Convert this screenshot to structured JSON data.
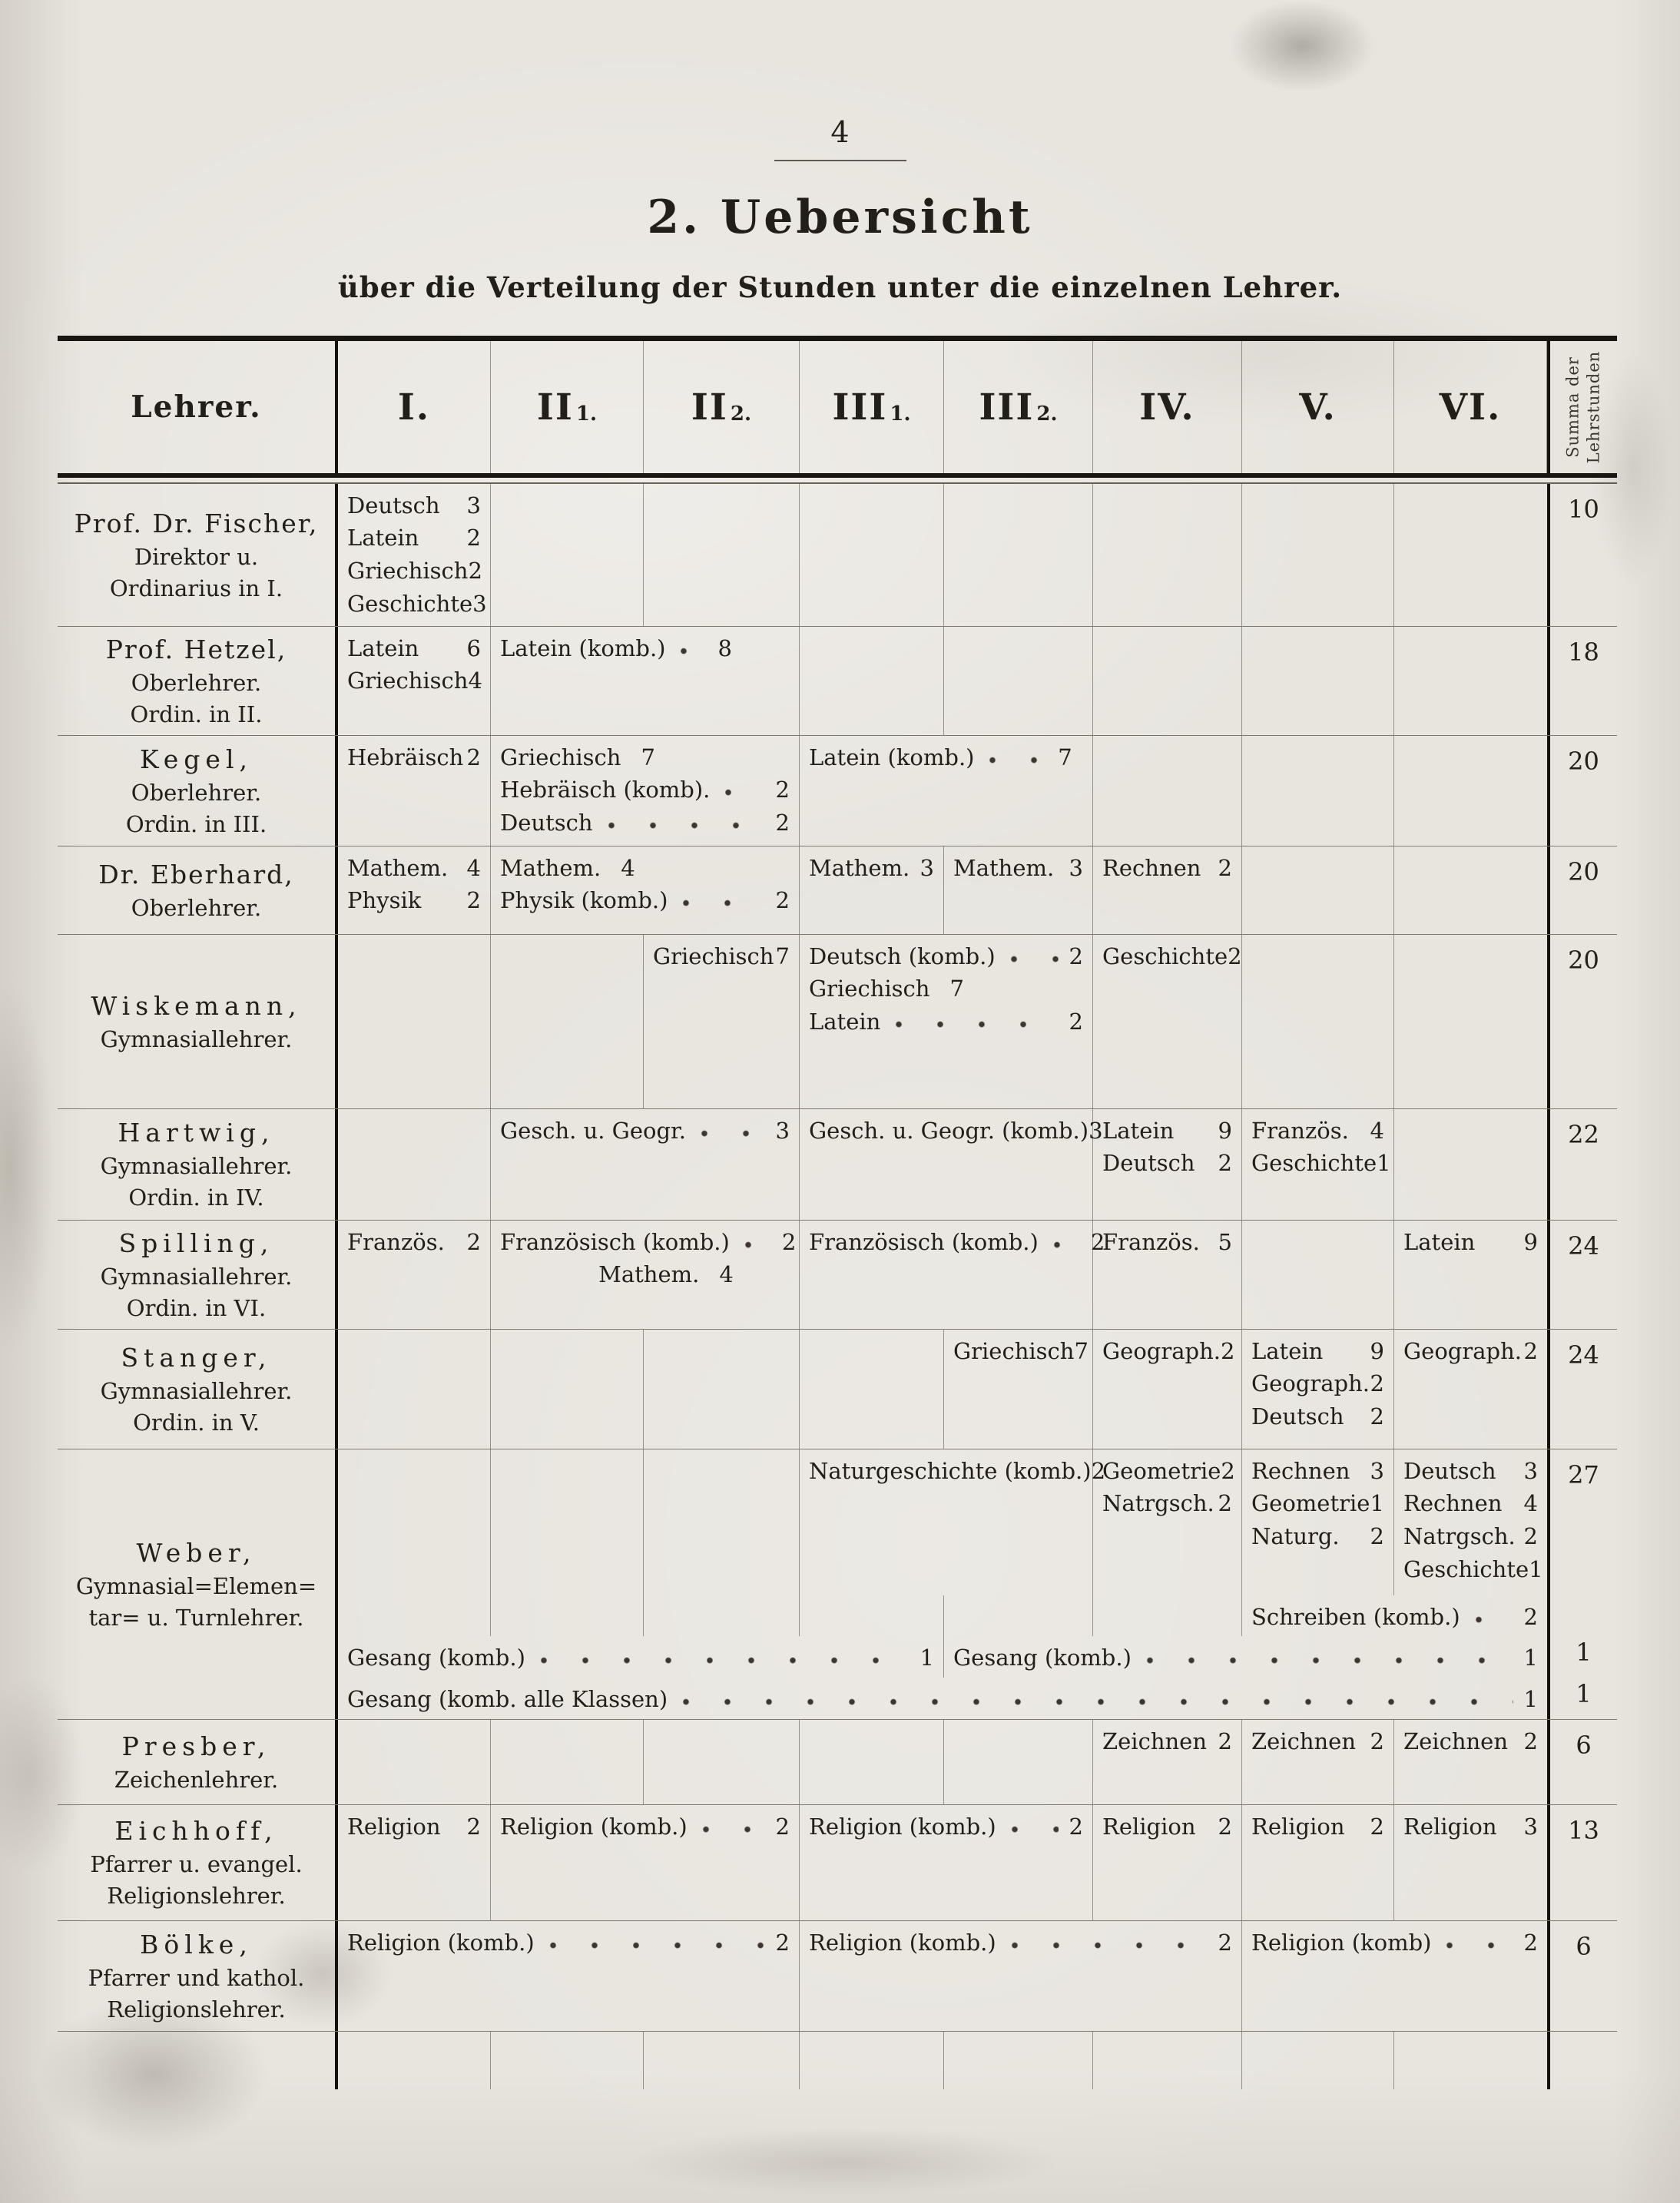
{
  "page_number": "4",
  "title": "2. Uebersicht",
  "subtitle": "über die Verteilung der Stunden unter die einzelnen Lehrer.",
  "colors": {
    "paper": "#e8e5df",
    "ink": "#221e18",
    "rule": "#15110c"
  },
  "table": {
    "lehrer_header": "Lehrer.",
    "class_headers": [
      {
        "main": "I.",
        "sub": ""
      },
      {
        "main": "II",
        "sub": "1."
      },
      {
        "main": "II",
        "sub": "2."
      },
      {
        "main": "III",
        "sub": "1."
      },
      {
        "main": "III",
        "sub": "2."
      },
      {
        "main": "IV.",
        "sub": ""
      },
      {
        "main": "V.",
        "sub": ""
      },
      {
        "main": "VI.",
        "sub": ""
      }
    ],
    "summa_header_line1": "Summa der",
    "summa_header_line2": "Lehrstunden",
    "rows": [
      {
        "name_lines": [
          "Prof. Dr. Fischer,",
          "Direktor u.",
          "Ordinarius in I."
        ],
        "spaced": false,
        "sub_rows": [
          {
            "summa": "10",
            "cells": [
              {
                "col": 1,
                "lines": [
                  {
                    "s": "Deutsch",
                    "v": "3"
                  },
                  {
                    "s": "Latein",
                    "v": "2"
                  },
                  {
                    "s": "Griechisch",
                    "v": "2"
                  },
                  {
                    "s": "Geschichte",
                    "v": "3"
                  }
                ]
              }
            ]
          }
        ]
      },
      {
        "name_lines": [
          "Prof. Hetzel,",
          "Oberlehrer.",
          "Ordin. in II."
        ],
        "spaced": false,
        "sub_rows": [
          {
            "summa": "18",
            "cells": [
              {
                "col": 1,
                "lines": [
                  {
                    "s": "Latein",
                    "v": "6"
                  },
                  {
                    "s": "Griechisch",
                    "v": "4"
                  }
                ]
              },
              {
                "col": 2,
                "span": 2,
                "lines": [
                  {
                    "s": "Latein (komb.)",
                    "v": "8",
                    "dots": true,
                    "w": 66
                  }
                ]
              }
            ]
          }
        ]
      },
      {
        "name_lines": [
          "Kegel,",
          "Oberlehrer.",
          "Ordin. in III."
        ],
        "spaced": true,
        "sub_rows": [
          {
            "summa": "20",
            "cells": [
              {
                "col": 1,
                "lines": [
                  {
                    "s": "Hebräisch",
                    "v": "2"
                  }
                ]
              },
              {
                "col": 2,
                "span": 2,
                "lines": [
                  {
                    "s": "Griechisch",
                    "v": "7",
                    "inline": true
                  },
                  {
                    "s": "Hebräisch (komb).",
                    "v": "2",
                    "dots": true
                  },
                  {
                    "s": "Deutsch",
                    "v": "2",
                    "dots": true
                  }
                ]
              },
              {
                "col": 4,
                "span": 2,
                "lines": [
                  {
                    "s": "Latein (komb.)",
                    "v": "7",
                    "dots": true,
                    "w": 96
                  }
                ]
              }
            ]
          }
        ]
      },
      {
        "name_lines": [
          "Dr. Eberhard,",
          "Oberlehrer."
        ],
        "spaced": false,
        "sub_rows": [
          {
            "summa": "20",
            "cells": [
              {
                "col": 1,
                "lines": [
                  {
                    "s": "Mathem.",
                    "v": "4"
                  },
                  {
                    "s": "Physik",
                    "v": "2"
                  }
                ]
              },
              {
                "col": 2,
                "span": 2,
                "lines": [
                  {
                    "s": "Mathem.",
                    "v": "4",
                    "inline": true
                  },
                  {
                    "s": "Physik (komb.)",
                    "v": "2",
                    "dots": true
                  }
                ]
              },
              {
                "col": 4,
                "lines": [
                  {
                    "s": "Mathem.",
                    "v": "3"
                  }
                ]
              },
              {
                "col": 5,
                "lines": [
                  {
                    "s": "Mathem.",
                    "v": "3"
                  }
                ]
              },
              {
                "col": 6,
                "lines": [
                  {
                    "s": "Rechnen",
                    "v": "2"
                  }
                ]
              }
            ]
          }
        ]
      },
      {
        "name_lines": [
          "Wiskemann,",
          "Gymnasiallehrer."
        ],
        "spaced": true,
        "sub_rows": [
          {
            "summa": "20",
            "cells": [
              {
                "col": 3,
                "lines": [
                  {
                    "s": "Griechisch",
                    "v": "7"
                  }
                ]
              },
              {
                "col": 4,
                "span": 2,
                "lines": [
                  {
                    "s": "Deutsch (komb.)",
                    "v": "2",
                    "dots": true
                  },
                  {
                    "s": "Griechisch",
                    "v": "7",
                    "inline": true
                  },
                  {
                    "s": "Latein",
                    "v": "2",
                    "dots": true
                  }
                ]
              },
              {
                "col": 6,
                "lines": [
                  {
                    "s": "Geschichte",
                    "v": "2"
                  }
                ]
              }
            ]
          }
        ]
      },
      {
        "name_lines": [
          "Hartwig,",
          "Gymnasiallehrer.",
          "Ordin. in IV."
        ],
        "spaced": true,
        "sub_rows": [
          {
            "summa": "22",
            "cells": [
              {
                "col": 2,
                "span": 2,
                "lines": [
                  {
                    "s": "Gesch. u. Geogr.",
                    "v": "3",
                    "dots": true
                  }
                ]
              },
              {
                "col": 4,
                "span": 2,
                "lines": [
                  {
                    "s": "Gesch. u. Geogr. (komb.)",
                    "v": "3"
                  }
                ]
              },
              {
                "col": 6,
                "lines": [
                  {
                    "s": "Latein",
                    "v": "9"
                  },
                  {
                    "s": "Deutsch",
                    "v": "2"
                  }
                ]
              },
              {
                "col": 7,
                "lines": [
                  {
                    "s": "Französ.",
                    "v": "4"
                  },
                  {
                    "s": "Geschichte",
                    "v": "1"
                  }
                ]
              }
            ]
          }
        ]
      },
      {
        "name_lines": [
          "Spilling,",
          "Gymnasiallehrer.",
          "Ordin. in VI."
        ],
        "spaced": true,
        "sub_rows": [
          {
            "summa": "24",
            "cells": [
              {
                "col": 1,
                "lines": [
                  {
                    "s": "Französ.",
                    "v": "2"
                  }
                ]
              },
              {
                "col": 2,
                "span": 2,
                "lines": [
                  {
                    "s": "Französisch (komb.)",
                    "v": "2",
                    "dots": true
                  },
                  {
                    "s": "Mathem.",
                    "v": "4",
                    "inline": true,
                    "indent": 34
                  }
                ]
              },
              {
                "col": 4,
                "span": 2,
                "lines": [
                  {
                    "s": "Französisch (komb.)",
                    "v": "2",
                    "dots": true
                  }
                ]
              },
              {
                "col": 6,
                "lines": [
                  {
                    "s": "Französ.",
                    "v": "5"
                  }
                ]
              },
              {
                "col": 8,
                "lines": [
                  {
                    "s": "Latein",
                    "v": "9"
                  }
                ]
              }
            ]
          }
        ]
      },
      {
        "name_lines": [
          "Stanger,",
          "Gymnasiallehrer.",
          "Ordin. in V."
        ],
        "spaced": true,
        "sub_rows": [
          {
            "summa": "24",
            "cells": [
              {
                "col": 5,
                "lines": [
                  {
                    "s": "Griechisch",
                    "v": "7"
                  }
                ]
              },
              {
                "col": 6,
                "lines": [
                  {
                    "s": "Geograph.",
                    "v": "2"
                  }
                ]
              },
              {
                "col": 7,
                "lines": [
                  {
                    "s": "Latein",
                    "v": "9"
                  },
                  {
                    "s": "Geograph.",
                    "v": "2"
                  },
                  {
                    "s": "Deutsch",
                    "v": "2"
                  }
                ]
              },
              {
                "col": 8,
                "lines": [
                  {
                    "s": "Geograph.",
                    "v": "2"
                  }
                ]
              }
            ]
          }
        ]
      },
      {
        "name_lines": [
          "Weber,",
          "Gymnasial=Elemen=",
          "tar= u. Turnlehrer."
        ],
        "spaced": true,
        "sub_rows": [
          {
            "summa": "27",
            "cells": [
              {
                "col": 4,
                "span": 2,
                "lines": [
                  {
                    "s": "Naturgeschichte (komb.)",
                    "v": "2"
                  }
                ]
              },
              {
                "col": 6,
                "lines": [
                  {
                    "s": "Geometrie",
                    "v": "2"
                  },
                  {
                    "s": "Natrgsch.",
                    "v": "2"
                  }
                ]
              },
              {
                "col": 7,
                "lines": [
                  {
                    "s": "Rechnen",
                    "v": "3"
                  },
                  {
                    "s": "Geometrie",
                    "v": "1"
                  },
                  {
                    "s": "Naturg.",
                    "v": "2"
                  }
                ]
              },
              {
                "col": 8,
                "lines": [
                  {
                    "s": "Deutsch",
                    "v": "3"
                  },
                  {
                    "s": "Rechnen",
                    "v": "4"
                  },
                  {
                    "s": "Natrgsch.",
                    "v": "2"
                  },
                  {
                    "s": "Geschichte",
                    "v": "1"
                  }
                ]
              }
            ]
          },
          {
            "summa": "",
            "cells": [
              {
                "col": 7,
                "span": 2,
                "lines": [
                  {
                    "s": "Schreiben (komb.)",
                    "v": "2",
                    "dots": true
                  }
                ]
              }
            ]
          },
          {
            "summa": "1",
            "cells": [
              {
                "col": 1,
                "span": 4,
                "lines": [
                  {
                    "s": "Gesang (komb.)",
                    "v": "1",
                    "dots": true
                  }
                ]
              },
              {
                "col": 5,
                "span": 4,
                "lines": [
                  {
                    "s": "Gesang (komb.)",
                    "v": "1",
                    "dots": true
                  }
                ]
              }
            ]
          },
          {
            "summa": "1",
            "cells": [
              {
                "col": 1,
                "span": 8,
                "lines": [
                  {
                    "s": "Gesang (komb. alle Klassen)",
                    "v": "1",
                    "dots": true
                  }
                ]
              }
            ]
          }
        ]
      },
      {
        "name_lines": [
          "Presber,",
          "Zeichenlehrer."
        ],
        "spaced": true,
        "sub_rows": [
          {
            "summa": "6",
            "cells": [
              {
                "col": 6,
                "lines": [
                  {
                    "s": "Zeichnen",
                    "v": "2"
                  }
                ]
              },
              {
                "col": 7,
                "lines": [
                  {
                    "s": "Zeichnen",
                    "v": "2"
                  }
                ]
              },
              {
                "col": 8,
                "lines": [
                  {
                    "s": "Zeichnen",
                    "v": "2"
                  }
                ]
              }
            ]
          }
        ]
      },
      {
        "name_lines": [
          "Eichhoff,",
          "Pfarrer u. evangel.",
          "Religionslehrer."
        ],
        "spaced": true,
        "sub_rows": [
          {
            "summa": "13",
            "cells": [
              {
                "col": 1,
                "lines": [
                  {
                    "s": "Religion",
                    "v": "2"
                  }
                ]
              },
              {
                "col": 2,
                "span": 2,
                "lines": [
                  {
                    "s": "Religion (komb.)",
                    "v": "2",
                    "dots": true
                  }
                ]
              },
              {
                "col": 4,
                "span": 2,
                "lines": [
                  {
                    "s": "Religion (komb.)",
                    "v": "2",
                    "dots": true
                  }
                ]
              },
              {
                "col": 6,
                "lines": [
                  {
                    "s": "Religion",
                    "v": "2"
                  }
                ]
              },
              {
                "col": 7,
                "lines": [
                  {
                    "s": "Religion",
                    "v": "2"
                  }
                ]
              },
              {
                "col": 8,
                "lines": [
                  {
                    "s": "Religion",
                    "v": "3"
                  }
                ]
              }
            ]
          }
        ]
      },
      {
        "name_lines": [
          "Bölke,",
          "Pfarrer und kathol.",
          "Religionslehrer."
        ],
        "spaced": true,
        "sub_rows": [
          {
            "summa": "6",
            "cells": [
              {
                "col": 1,
                "span": 3,
                "lines": [
                  {
                    "s": "Religion (komb.)",
                    "v": "2",
                    "dots": true
                  }
                ]
              },
              {
                "col": 4,
                "span": 3,
                "lines": [
                  {
                    "s": "Religion (komb.)",
                    "v": "2",
                    "dots": true
                  }
                ]
              },
              {
                "col": 7,
                "span": 2,
                "lines": [
                  {
                    "s": "Religion (komb)",
                    "v": "2",
                    "dots": true
                  }
                ]
              }
            ]
          }
        ]
      }
    ]
  }
}
